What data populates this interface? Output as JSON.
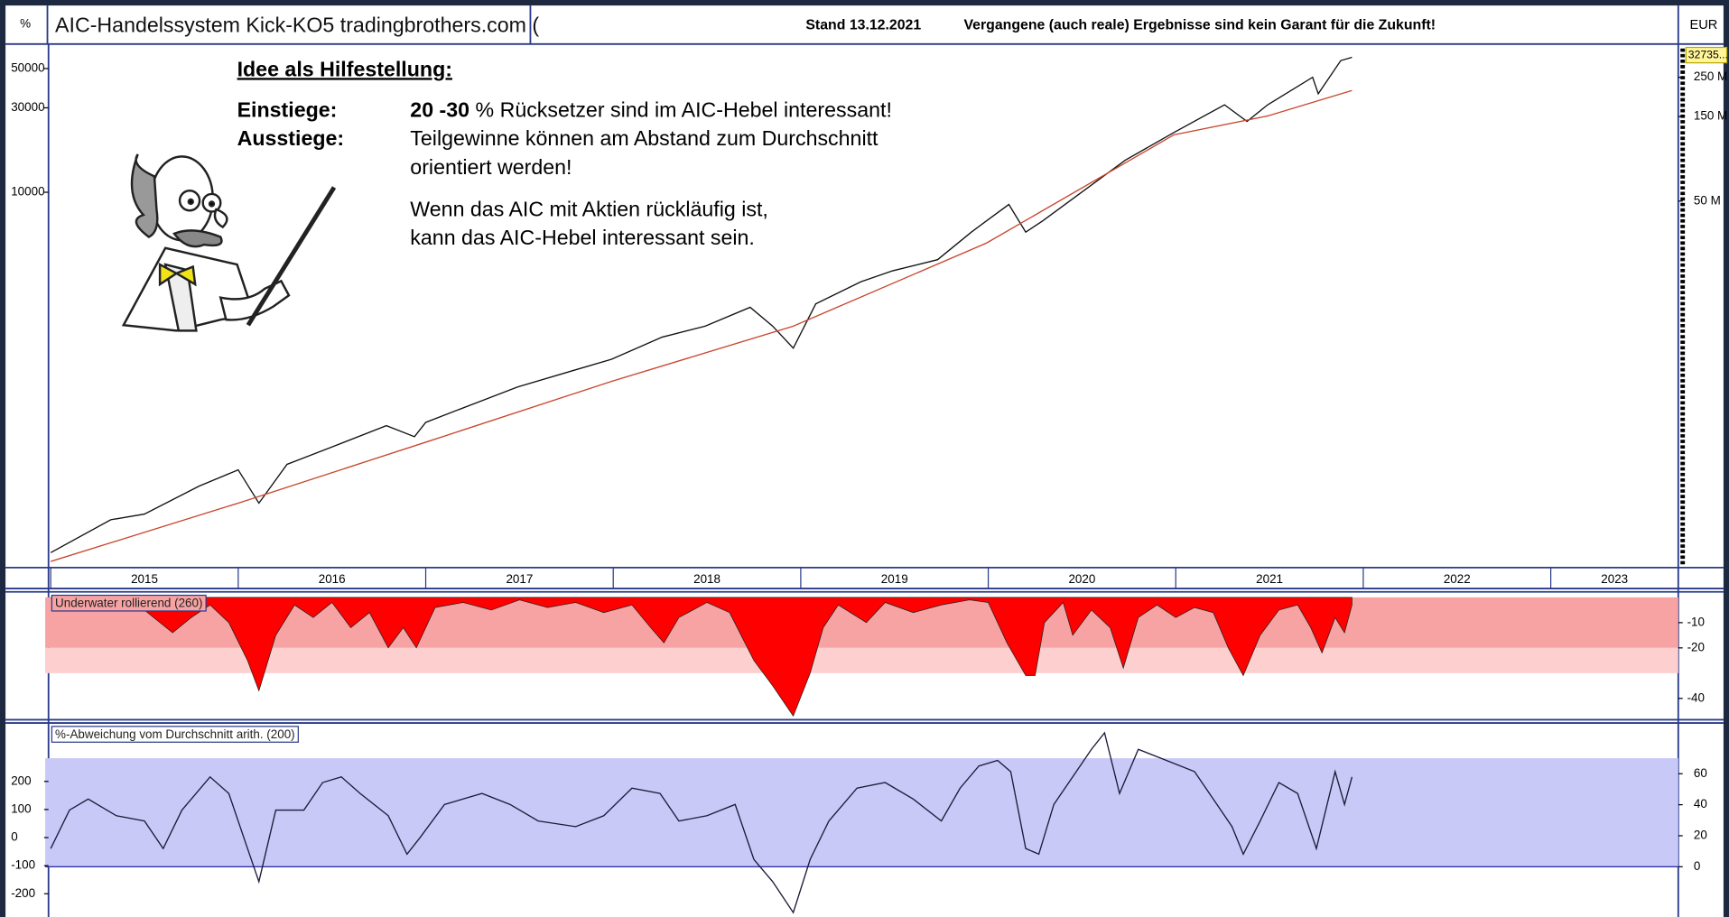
{
  "header": {
    "corner": "%",
    "title": "AIC-Handelssystem Kick-KO5  tradingbrothers.com (",
    "date": "Stand 13.12.2021",
    "disclaimer": "Vergangene (auch reale) Ergebnisse sind kein Garant für die Zukunft!",
    "currency": "EUR"
  },
  "notes": {
    "heading": "Idee als Hilfestellung:",
    "entry_label": "Einstiege:",
    "entry_bold": "20 -30",
    "entry_text": " % Rücksetzer sind im AIC-Hebel interessant!",
    "exit_label": "Ausstiege:",
    "exit_line1": "Teilgewinne können am Abstand zum Durchschnitt",
    "exit_line2": "orientiert werden!",
    "hint_line1": "Wenn das AIC mit Aktien rückläufig ist,",
    "hint_line2": "kann das AIC-Hebel interessant sein."
  },
  "chart_data": [
    {
      "type": "line",
      "log_scale": true,
      "last_value_label": "32735...",
      "xlim": [
        2015,
        2023.68
      ],
      "xticks": [
        {
          "value": 2015,
          "label": "2015"
        },
        {
          "value": 2016,
          "label": "2016"
        },
        {
          "value": 2017,
          "label": "2017"
        },
        {
          "value": 2018,
          "label": "2018"
        },
        {
          "value": 2019,
          "label": "2019"
        },
        {
          "value": 2020,
          "label": "2020"
        },
        {
          "value": 2021,
          "label": "2021"
        },
        {
          "value": 2022,
          "label": "2022"
        },
        {
          "value": 2023,
          "label": "2023"
        }
      ],
      "ylim": [
        79,
        66800
      ],
      "yticks": [
        50000,
        30000,
        10000
      ],
      "y2lim": [
        445000,
        374000000
      ],
      "y2ticks": [
        {
          "value": 250000000,
          "label": "250 M"
        },
        {
          "value": 150000000,
          "label": "150 M"
        },
        {
          "value": 50000000,
          "label": "50 M"
        }
      ],
      "series": [
        {
          "color": "#111111",
          "x": [
            2015.0,
            2015.32,
            2015.5,
            2015.79,
            2016.0,
            2016.11,
            2016.26,
            2016.49,
            2016.79,
            2016.94,
            2017.0,
            2017.26,
            2017.49,
            2017.79,
            2017.99,
            2018.26,
            2018.49,
            2018.73,
            2018.85,
            2018.96,
            2019.08,
            2019.32,
            2019.49,
            2019.73,
            2019.91,
            2019.99,
            2020.11,
            2020.2,
            2020.29,
            2020.49,
            2020.73,
            2020.99,
            2021.26,
            2021.38,
            2021.49,
            2021.73,
            2021.76,
            2021.88,
            2021.94
          ],
          "values": [
            92,
            141,
            152,
            218,
            270,
            175,
            290,
            360,
            480,
            416,
            501,
            640,
            794,
            986,
            1137,
            1517,
            1753,
            2239,
            1753,
            1315,
            2339,
            3119,
            3597,
            4159,
            5957,
            6879,
            8531,
            5957,
            6879,
            9856,
            15170,
            21750,
            31180,
            25120,
            31180,
            44670,
            35980,
            55450,
            57880
          ]
        },
        {
          "color": "#c8462e",
          "x": [
            2015.0,
            2016.0,
            2017.0,
            2017.99,
            2018.96,
            2019.99,
            2020.99,
            2021.49,
            2021.94
          ],
          "values": [
            82,
            175,
            387,
            853,
            1753,
            5158,
            21130,
            26980,
            37580
          ]
        }
      ]
    },
    {
      "type": "area",
      "title": "Underwater rollierend (260)",
      "y_axis_side": "right",
      "xlim": [
        2015,
        2023.68
      ],
      "ylim": [
        -48,
        0
      ],
      "yticks": [
        -10,
        -20,
        -40
      ],
      "bands": [
        {
          "from": 0,
          "to": -20,
          "color": "#f7a3a3"
        },
        {
          "from": -20,
          "to": -30,
          "color": "#fdcfcf"
        }
      ],
      "series": [
        {
          "color": "#ff0000",
          "x": [
            2015.0,
            2015.1,
            2015.2,
            2015.3,
            2015.4,
            2015.5,
            2015.65,
            2015.75,
            2015.85,
            2015.95,
            2016.05,
            2016.11,
            2016.2,
            2016.3,
            2016.4,
            2016.5,
            2016.6,
            2016.7,
            2016.8,
            2016.88,
            2016.95,
            2017.05,
            2017.2,
            2017.35,
            2017.5,
            2017.65,
            2017.8,
            2017.95,
            2018.1,
            2018.2,
            2018.27,
            2018.35,
            2018.5,
            2018.62,
            2018.75,
            2018.85,
            2018.96,
            2019.05,
            2019.12,
            2019.2,
            2019.35,
            2019.45,
            2019.6,
            2019.75,
            2019.9,
            2020.0,
            2020.1,
            2020.2,
            2020.25,
            2020.3,
            2020.4,
            2020.45,
            2020.55,
            2020.65,
            2020.72,
            2020.8,
            2020.9,
            2021.0,
            2021.1,
            2021.2,
            2021.28,
            2021.36,
            2021.45,
            2021.55,
            2021.65,
            2021.72,
            2021.78,
            2021.85,
            2021.9,
            2021.94
          ],
          "values": [
            0,
            -2,
            -1,
            -3,
            0,
            -5,
            -14,
            -8,
            -3,
            -10,
            -25,
            -37,
            -15,
            -3,
            -8,
            -2,
            -12,
            -6,
            -20,
            -12,
            -20,
            -4,
            -2,
            -5,
            -1,
            -4,
            -2,
            -6,
            -3,
            -12,
            -18,
            -8,
            -2,
            -6,
            -25,
            -35,
            -47,
            -30,
            -12,
            -3,
            -10,
            -2,
            -6,
            -3,
            -1,
            -2,
            -18,
            -31,
            -31,
            -10,
            -2,
            -15,
            -5,
            -12,
            -28,
            -8,
            -3,
            -8,
            -4,
            -6,
            -20,
            -31,
            -15,
            -5,
            -3,
            -12,
            -22,
            -8,
            -14,
            -3
          ]
        }
      ]
    },
    {
      "type": "line",
      "title": "%-Abweichung vom Durchschnitt arith. (200)",
      "xlim": [
        2015,
        2023.68
      ],
      "ylim": [
        -275,
        404
      ],
      "yticks": [
        200,
        100,
        0,
        -100,
        -200
      ],
      "y2lim": [
        -31,
        92
      ],
      "y2ticks": [
        60,
        40,
        20,
        0
      ],
      "bands": [
        {
          "from": 0,
          "to": 70,
          "color": "#c9c9f7",
          "axis": "y2"
        }
      ],
      "series": [
        {
          "color": "#1b1b3a",
          "x": [
            2015.0,
            2015.1,
            2015.2,
            2015.35,
            2015.5,
            2015.6,
            2015.7,
            2015.85,
            2015.95,
            2016.05,
            2016.11,
            2016.2,
            2016.35,
            2016.45,
            2016.55,
            2016.65,
            2016.8,
            2016.9,
            2016.97,
            2017.1,
            2017.3,
            2017.45,
            2017.6,
            2017.8,
            2017.95,
            2018.1,
            2018.25,
            2018.35,
            2018.5,
            2018.65,
            2018.75,
            2018.85,
            2018.96,
            2019.05,
            2019.15,
            2019.3,
            2019.45,
            2019.6,
            2019.75,
            2019.85,
            2019.95,
            2020.05,
            2020.12,
            2020.2,
            2020.27,
            2020.35,
            2020.45,
            2020.55,
            2020.62,
            2020.7,
            2020.8,
            2020.95,
            2021.1,
            2021.2,
            2021.3,
            2021.36,
            2021.45,
            2021.55,
            2021.65,
            2021.75,
            2021.85,
            2021.9,
            2021.94
          ],
          "values": [
            -39,
            98,
            137,
            78,
            59,
            -39,
            98,
            216,
            157,
            -39,
            -157,
            98,
            98,
            196,
            216,
            157,
            78,
            -59,
            0,
            118,
            157,
            118,
            59,
            39,
            78,
            176,
            157,
            59,
            78,
            118,
            -78,
            -157,
            -267,
            -78,
            59,
            176,
            196,
            137,
            59,
            176,
            255,
            275,
            235,
            -39,
            -59,
            118,
            216,
            314,
            373,
            157,
            314,
            275,
            235,
            137,
            39,
            -59,
            59,
            196,
            157,
            -39,
            235,
            118,
            216
          ]
        }
      ]
    }
  ]
}
